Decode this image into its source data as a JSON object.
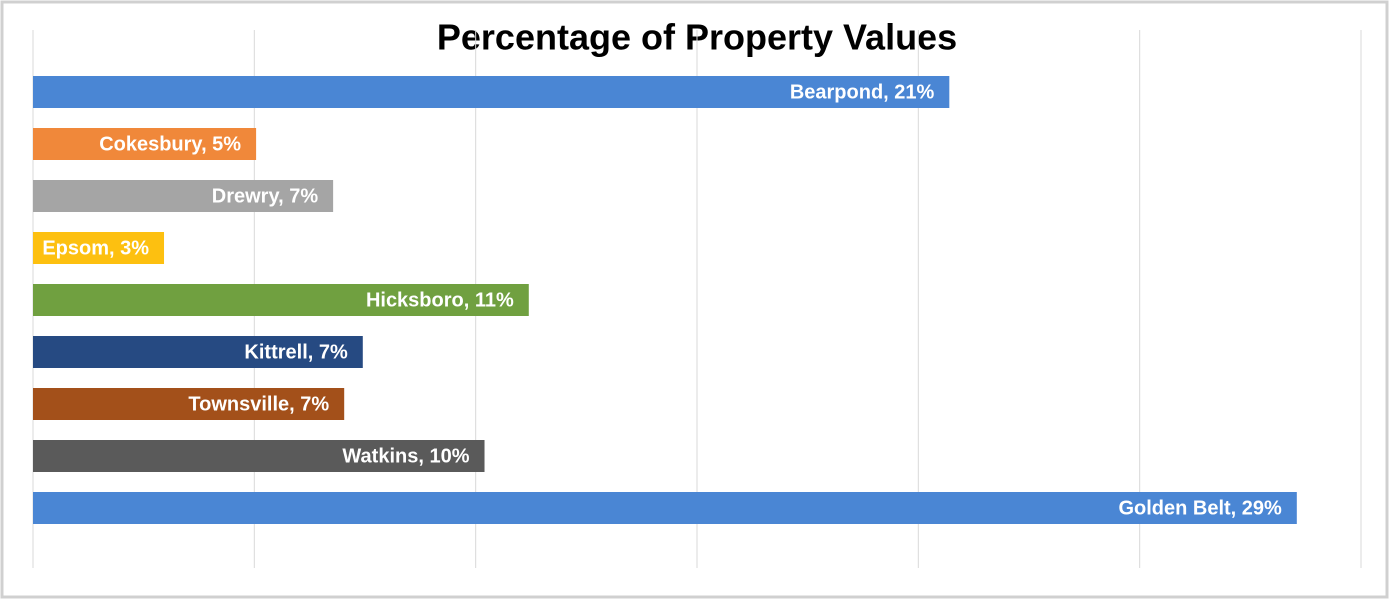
{
  "chart_data": {
    "type": "barh",
    "title": "Percentage of Property Values",
    "values": [
      20.7,
      5.04,
      6.78,
      2.96,
      11.2,
      7.45,
      7.03,
      10.2,
      28.55
    ],
    "value_labels": [
      "Bearpond, 21%",
      "Cokesbury, 5%",
      "Drewry, 7%",
      "Epsom, 3%",
      "Hicksboro, 11%",
      "Kittrell, 7%",
      "Townsville, 7%",
      "Watkins, 10%",
      "Golden Belt, 29%"
    ],
    "colors": [
      "#4a86d4",
      "#f0883a",
      "#a5a5a5",
      "#fdc010",
      "#70a040",
      "#264a82",
      "#a3501a",
      "#5a5a5a",
      "#4a86d4"
    ],
    "xlim": [
      0,
      30
    ],
    "xticks": [
      0,
      5,
      10,
      15,
      20,
      25,
      30
    ],
    "grid": true
  }
}
